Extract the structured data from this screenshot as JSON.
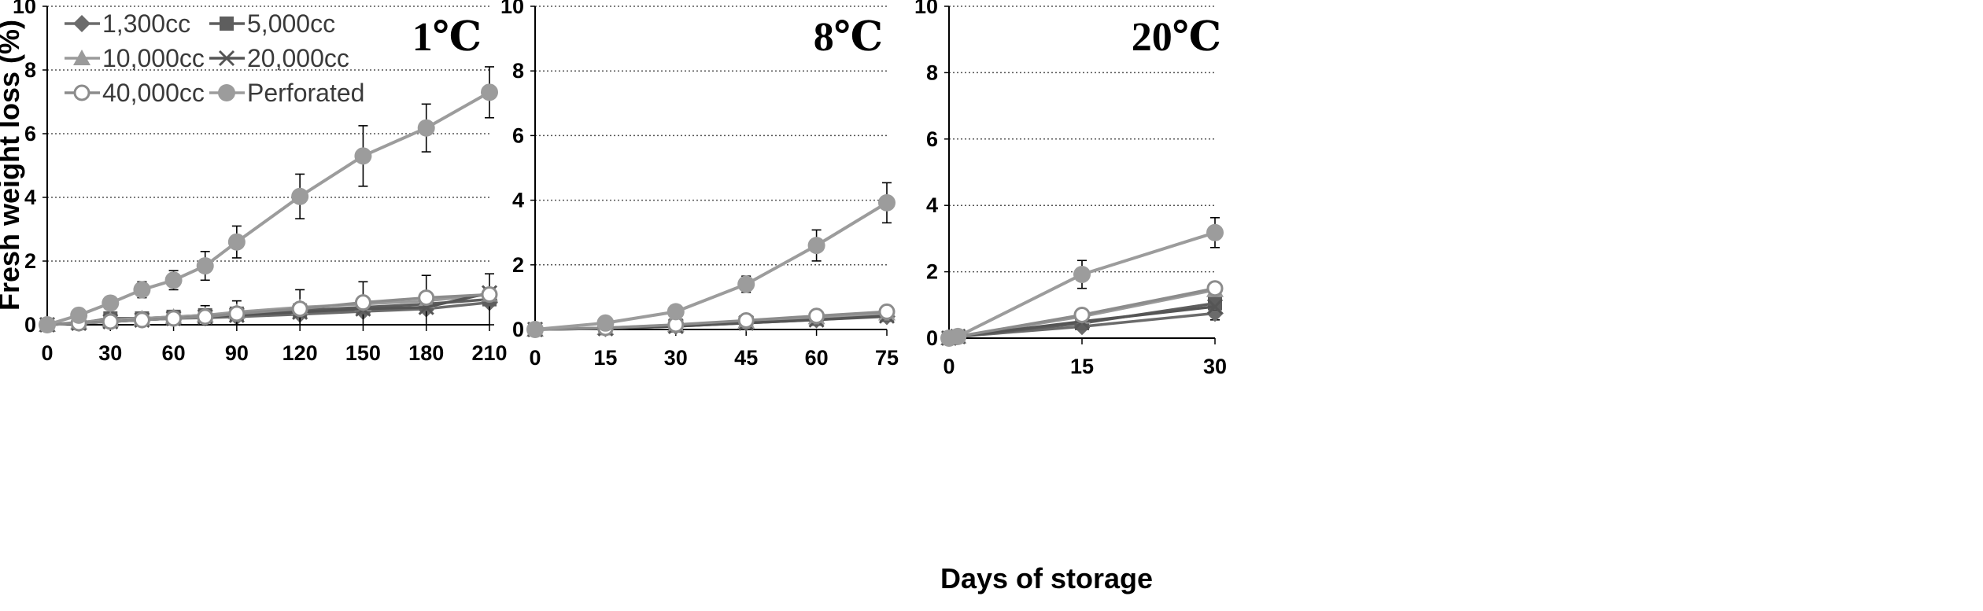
{
  "chart_data": {
    "type": "line",
    "ylabel": "Fresh weight loss (%)",
    "xlabel": "Days of storage",
    "legend_position": "top-left",
    "legend": [
      {
        "name": "1,300cc",
        "marker": "diamond",
        "color": "#6b6b6b"
      },
      {
        "name": "5,000cc",
        "marker": "square",
        "color": "#5e5e5e"
      },
      {
        "name": "10,000cc",
        "marker": "triangle",
        "color": "#9a9a9a"
      },
      {
        "name": "20,000cc",
        "marker": "x",
        "color": "#555555"
      },
      {
        "name": "40,000cc",
        "marker": "open-circle",
        "color": "#8c8c8c"
      },
      {
        "name": "Perforated",
        "marker": "circle",
        "color": "#9c9c9c"
      }
    ],
    "panels": [
      {
        "title": "1℃",
        "x": [
          0,
          15,
          30,
          45,
          60,
          75,
          90,
          120,
          150,
          180,
          210
        ],
        "xticks": [
          0,
          30,
          60,
          90,
          120,
          150,
          180,
          210
        ],
        "xlim": [
          0,
          210
        ],
        "ylim": [
          0,
          10
        ],
        "yticks": [
          0,
          2,
          4,
          6,
          8,
          10
        ],
        "series": [
          {
            "name": "1,300cc",
            "values": [
              0,
              0.05,
              0.1,
              0.15,
              0.2,
              0.22,
              0.25,
              0.33,
              0.42,
              0.5,
              0.7
            ],
            "error": [
              0,
              0,
              0,
              0,
              0,
              0,
              0,
              0,
              0,
              0,
              0
            ]
          },
          {
            "name": "5,000cc",
            "values": [
              0,
              0.05,
              0.2,
              0.2,
              0.25,
              0.3,
              0.35,
              0.45,
              0.55,
              0.65,
              0.8
            ],
            "error": [
              0,
              0,
              0.08,
              0.15,
              0.2,
              0.3,
              0.4,
              0.65,
              0.8,
              0.9,
              0.8
            ]
          },
          {
            "name": "10,000cc",
            "values": [
              0,
              0.08,
              0.15,
              0.2,
              0.25,
              0.3,
              0.4,
              0.55,
              0.65,
              0.75,
              0.95
            ],
            "error": [
              0,
              0,
              0,
              0,
              0,
              0,
              0,
              0,
              0,
              0,
              0
            ]
          },
          {
            "name": "20,000cc",
            "values": [
              0,
              0.05,
              0.1,
              0.15,
              0.2,
              0.25,
              0.3,
              0.4,
              0.5,
              0.55,
              1.0
            ],
            "error": [
              0,
              0,
              0,
              0,
              0,
              0,
              0,
              0,
              0,
              0,
              0
            ]
          },
          {
            "name": "40,000cc",
            "values": [
              0,
              0.05,
              0.1,
              0.15,
              0.2,
              0.25,
              0.35,
              0.5,
              0.7,
              0.85,
              0.95
            ],
            "error": [
              0,
              0,
              0,
              0,
              0,
              0,
              0,
              0,
              0,
              0,
              0
            ]
          },
          {
            "name": "Perforated",
            "values": [
              0,
              0.3,
              0.68,
              1.1,
              1.4,
              1.85,
              2.6,
              4.03,
              5.3,
              6.18,
              7.3
            ],
            "error": [
              0,
              0.05,
              0.15,
              0.25,
              0.3,
              0.45,
              0.5,
              0.7,
              0.95,
              0.75,
              0.8
            ]
          }
        ]
      },
      {
        "title": "8℃",
        "x": [
          0,
          15,
          30,
          45,
          60,
          75
        ],
        "xticks": [
          0,
          15,
          30,
          45,
          60,
          75
        ],
        "xlim": [
          0,
          75
        ],
        "ylim": [
          0,
          10
        ],
        "yticks": [
          0,
          2,
          4,
          6,
          8,
          10
        ],
        "series": [
          {
            "name": "1,300cc",
            "values": [
              0,
              0.03,
              0.1,
              0.2,
              0.3,
              0.4
            ],
            "error": [
              0,
              0,
              0,
              0,
              0,
              0
            ]
          },
          {
            "name": "5,000cc",
            "values": [
              0,
              0.04,
              0.12,
              0.22,
              0.33,
              0.45
            ],
            "error": [
              0,
              0,
              0,
              0,
              0,
              0
            ]
          },
          {
            "name": "10,000cc",
            "values": [
              0,
              0.05,
              0.14,
              0.25,
              0.38,
              0.5
            ],
            "error": [
              0,
              0,
              0,
              0,
              0,
              0
            ]
          },
          {
            "name": "20,000cc",
            "values": [
              0,
              0.03,
              0.1,
              0.2,
              0.3,
              0.42
            ],
            "error": [
              0,
              0,
              0,
              0,
              0,
              0
            ]
          },
          {
            "name": "40,000cc",
            "values": [
              0,
              0.05,
              0.15,
              0.28,
              0.42,
              0.55
            ],
            "error": [
              0,
              0,
              0,
              0,
              0,
              0
            ]
          },
          {
            "name": "Perforated",
            "values": [
              0,
              0.2,
              0.55,
              1.4,
              2.6,
              3.92
            ],
            "error": [
              0,
              0.05,
              0.2,
              0.25,
              0.48,
              0.62
            ]
          }
        ]
      },
      {
        "title": "20℃",
        "x": [
          0,
          1,
          15,
          30
        ],
        "xticks": [
          0,
          15,
          30
        ],
        "xlim": [
          0,
          30
        ],
        "ylim": [
          0,
          10
        ],
        "yticks": [
          0,
          2,
          4,
          6,
          8,
          10
        ],
        "series": [
          {
            "name": "1,300cc",
            "values": [
              0,
              0.05,
              0.35,
              0.75
            ],
            "error": [
              0,
              0,
              0,
              0.2
            ]
          },
          {
            "name": "5,000cc",
            "values": [
              0,
              0.05,
              0.45,
              1.05
            ],
            "error": [
              0,
              0,
              0,
              0.2
            ]
          },
          {
            "name": "10,000cc",
            "values": [
              0,
              0.05,
              0.65,
              1.45
            ],
            "error": [
              0,
              0,
              0,
              0
            ]
          },
          {
            "name": "20,000cc",
            "values": [
              0,
              0.05,
              0.5,
              0.95
            ],
            "error": [
              0,
              0,
              0,
              0
            ]
          },
          {
            "name": "40,000cc",
            "values": [
              0,
              0.05,
              0.7,
              1.5
            ],
            "error": [
              0,
              0,
              0,
              0
            ]
          },
          {
            "name": "Perforated",
            "values": [
              0,
              0.05,
              1.92,
              3.18
            ],
            "error": [
              0,
              0,
              0.42,
              0.45
            ]
          }
        ]
      }
    ]
  }
}
